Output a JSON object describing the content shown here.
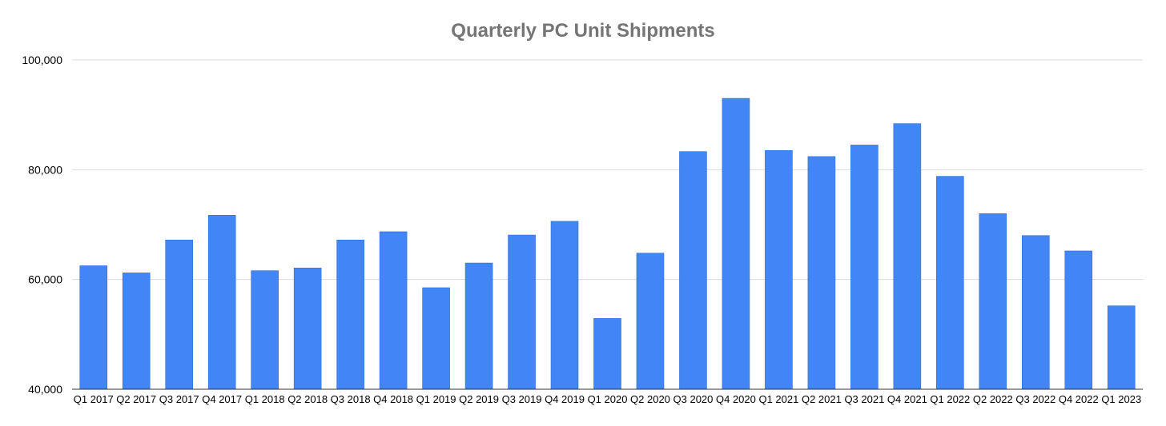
{
  "chart_data": {
    "type": "bar",
    "title": "Quarterly PC Unit Shipments",
    "xlabel": "",
    "ylabel": "",
    "ylim": [
      40000,
      100000
    ],
    "yticks": [
      40000,
      60000,
      80000,
      100000
    ],
    "ytick_labels": [
      "40,000",
      "60,000",
      "80,000",
      "100,000"
    ],
    "grid": true,
    "legend": "none",
    "bar_color": "#4285f4",
    "categories": [
      "Q1 2017",
      "Q2 2017",
      "Q3 2017",
      "Q4 2017",
      "Q1 2018",
      "Q2 2018",
      "Q3 2018",
      "Q4 2018",
      "Q1 2019",
      "Q2 2019",
      "Q3 2019",
      "Q4 2019",
      "Q1 2020",
      "Q2 2020",
      "Q3 2020",
      "Q4 2020",
      "Q1 2021",
      "Q2 2021",
      "Q3 2021",
      "Q4 2021",
      "Q1 2022",
      "Q2 2022",
      "Q3 2022",
      "Q4 2022",
      "Q1 2023"
    ],
    "values": [
      62500,
      61200,
      67200,
      71700,
      61600,
      62100,
      67200,
      68700,
      58500,
      63000,
      68100,
      70600,
      52900,
      64800,
      83300,
      93000,
      83500,
      82400,
      84500,
      88400,
      78800,
      72000,
      68000,
      65200,
      55200
    ]
  }
}
